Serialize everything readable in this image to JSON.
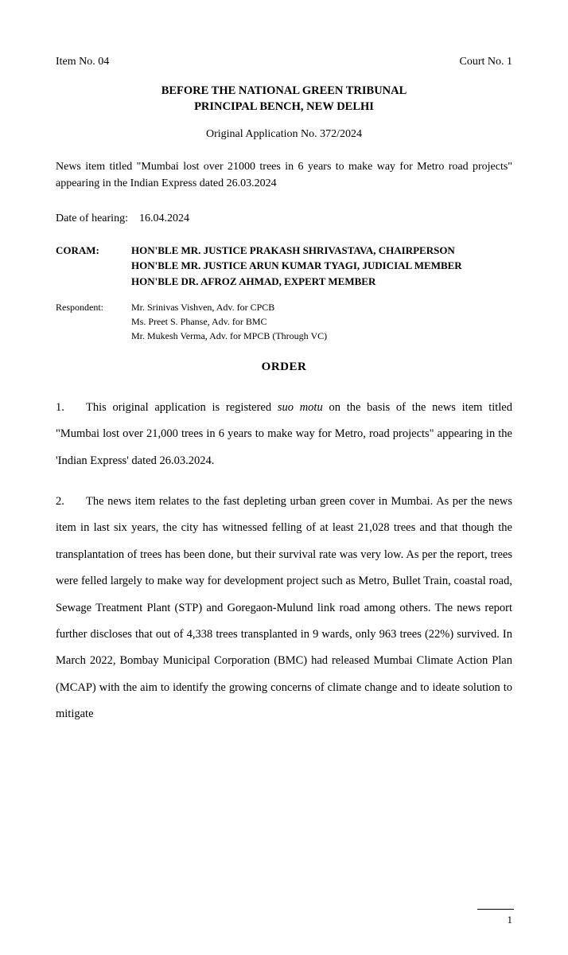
{
  "header": {
    "item_no": "Item No. 04",
    "court_no": "Court No. 1",
    "tribunal_line1": "BEFORE THE NATIONAL GREEN TRIBUNAL",
    "tribunal_line2": "PRINCIPAL BENCH, NEW DELHI",
    "case_number": "Original Application No. 372/2024",
    "news_title": "News item titled \"Mumbai lost over 21000 trees in 6 years to make way for Metro road projects\" appearing in the Indian Express dated 26.03.2024",
    "hearing_label": "Date of hearing:",
    "hearing_date": "16.04.2024"
  },
  "coram": {
    "label": "CORAM:",
    "member1": "HON'BLE MR. JUSTICE PRAKASH SHRIVASTAVA, CHAIRPERSON",
    "member2": "HON'BLE MR. JUSTICE ARUN KUMAR TYAGI, JUDICIAL MEMBER",
    "member3": "HON'BLE DR. AFROZ AHMAD, EXPERT MEMBER"
  },
  "respondent": {
    "label": "Respondent:",
    "adv1": "Mr. Srinivas Vishven, Adv. for CPCB",
    "adv2": "Ms. Preet S. Phanse, Adv. for BMC",
    "adv3": "Mr. Mukesh Verma, Adv. for MPCB (Through VC)"
  },
  "order": {
    "heading": "ORDER",
    "para1_num": "1.",
    "para1_a": "This original application is registered ",
    "para1_italic": "suo motu",
    "para1_b": " on the basis of the news item titled \"Mumbai lost over 21,000 trees in 6 years to make way for Metro, road projects\" appearing in the 'Indian Express' dated 26.03.2024.",
    "para2_num": "2.",
    "para2": "The news item relates to the fast depleting urban green cover in Mumbai. As per the news item in last six years, the city has witnessed felling of at least 21,028 trees and that though the transplantation of trees has been done, but their survival rate was very low. As per the report, trees were felled largely to make way for development project such as Metro, Bullet Train, coastal road, Sewage Treatment Plant (STP) and Goregaon-Mulund link road among others. The news report further discloses that out of 4,338 trees transplanted in 9 wards, only 963 trees (22%) survived. In March 2022, Bombay Municipal Corporation (BMC) had released Mumbai Climate Action Plan (MCAP) with the aim to identify the growing concerns of climate change and to ideate solution to mitigate"
  },
  "page_number": "1"
}
